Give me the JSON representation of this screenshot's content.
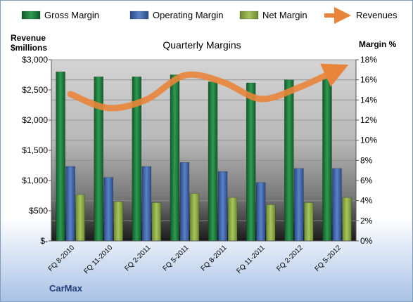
{
  "chart_data": {
    "type": "bar",
    "title": "Quarterly Margins",
    "brand": "CarMax",
    "left_axis_title": [
      "Revenue",
      "$millions"
    ],
    "right_axis_title": "Margin %",
    "categories": [
      "FQ 8-2010",
      "FQ 11-2010",
      "FQ 2-2011",
      "FQ 5-2011",
      "FQ 8-2011",
      "FQ 11-2011",
      "FQ 2-2012",
      "FQ 5-2012"
    ],
    "left_ticks": [
      "$-",
      "$500",
      "$1,000",
      "$1,500",
      "$2,000",
      "$2,500",
      "$3,000"
    ],
    "right_ticks": [
      "0%",
      "2%",
      "4%",
      "6%",
      "8%",
      "10%",
      "12%",
      "14%",
      "16%",
      "18%"
    ],
    "left_axis": {
      "min": 0,
      "max": 3000
    },
    "right_axis": {
      "min": 0,
      "max": 18
    },
    "legend_position": "top",
    "series": [
      {
        "name": "Gross Margin",
        "kind": "bar",
        "axis": "right",
        "color": "#1e7a3c",
        "values": [
          16.8,
          16.3,
          16.3,
          16.5,
          15.8,
          15.7,
          16.0,
          16.1
        ]
      },
      {
        "name": "Operating Margin",
        "kind": "bar",
        "axis": "right",
        "color": "#3f63a8",
        "values": [
          7.4,
          6.3,
          7.4,
          7.8,
          6.9,
          5.8,
          7.2,
          7.2
        ]
      },
      {
        "name": "Net Margin",
        "kind": "bar",
        "axis": "right",
        "color": "#8aab45",
        "values": [
          4.6,
          3.9,
          3.8,
          4.7,
          4.3,
          3.6,
          3.8,
          4.3
        ]
      },
      {
        "name": "Revenues",
        "kind": "line",
        "axis": "left",
        "color": "#e9853a",
        "values": [
          2430,
          2200,
          2340,
          2740,
          2630,
          2350,
          2540,
          2830
        ]
      }
    ]
  }
}
